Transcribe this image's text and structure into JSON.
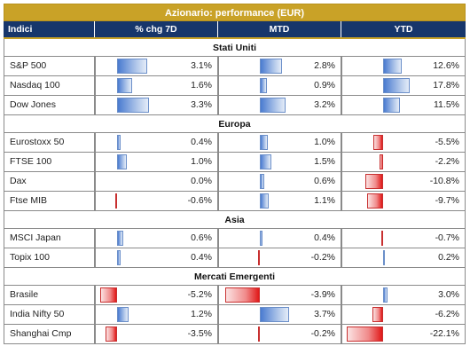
{
  "title": "Azionario: performance (EUR)",
  "headers": [
    "Indici",
    "% chg 7D",
    "MTD",
    "YTD"
  ],
  "colors": {
    "title_bg": "#c9a227",
    "header_bg": "#17366b",
    "positive_bar": "#4a7bd0",
    "negative_bar": "#e01818"
  },
  "sections": [
    {
      "name": "Stati Uniti",
      "rows": [
        {
          "name": "S&P 500",
          "chg7d": "3.1%",
          "mtd": "2.8%",
          "ytd": "12.6%"
        },
        {
          "name": "Nasdaq 100",
          "chg7d": "1.6%",
          "mtd": "0.9%",
          "ytd": "17.8%"
        },
        {
          "name": "Dow Jones",
          "chg7d": "3.3%",
          "mtd": "3.2%",
          "ytd": "11.5%"
        }
      ]
    },
    {
      "name": "Europa",
      "rows": [
        {
          "name": "Eurostoxx 50",
          "chg7d": "0.4%",
          "mtd": "1.0%",
          "ytd": "-5.5%"
        },
        {
          "name": "FTSE 100",
          "chg7d": "1.0%",
          "mtd": "1.5%",
          "ytd": "-2.2%"
        },
        {
          "name": "Dax",
          "chg7d": "0.0%",
          "mtd": "0.6%",
          "ytd": "-10.8%"
        },
        {
          "name": "Ftse MIB",
          "chg7d": "-0.6%",
          "mtd": "1.1%",
          "ytd": "-9.7%"
        }
      ]
    },
    {
      "name": "Asia",
      "rows": [
        {
          "name": "MSCI Japan",
          "chg7d": "0.6%",
          "mtd": "0.4%",
          "ytd": "-0.7%"
        },
        {
          "name": "Topix 100",
          "chg7d": "0.4%",
          "mtd": "-0.2%",
          "ytd": "0.2%"
        }
      ]
    },
    {
      "name": "Mercati Emergenti",
      "rows": [
        {
          "name": "Brasile",
          "chg7d": "-5.2%",
          "mtd": "-3.9%",
          "ytd": "3.0%"
        },
        {
          "name": "India Nifty 50",
          "chg7d": "1.2%",
          "mtd": "3.7%",
          "ytd": "-6.2%"
        },
        {
          "name": "Shanghai Cmp",
          "chg7d": "-3.5%",
          "mtd": "-0.2%",
          "ytd": "-22.1%"
        }
      ]
    }
  ]
}
